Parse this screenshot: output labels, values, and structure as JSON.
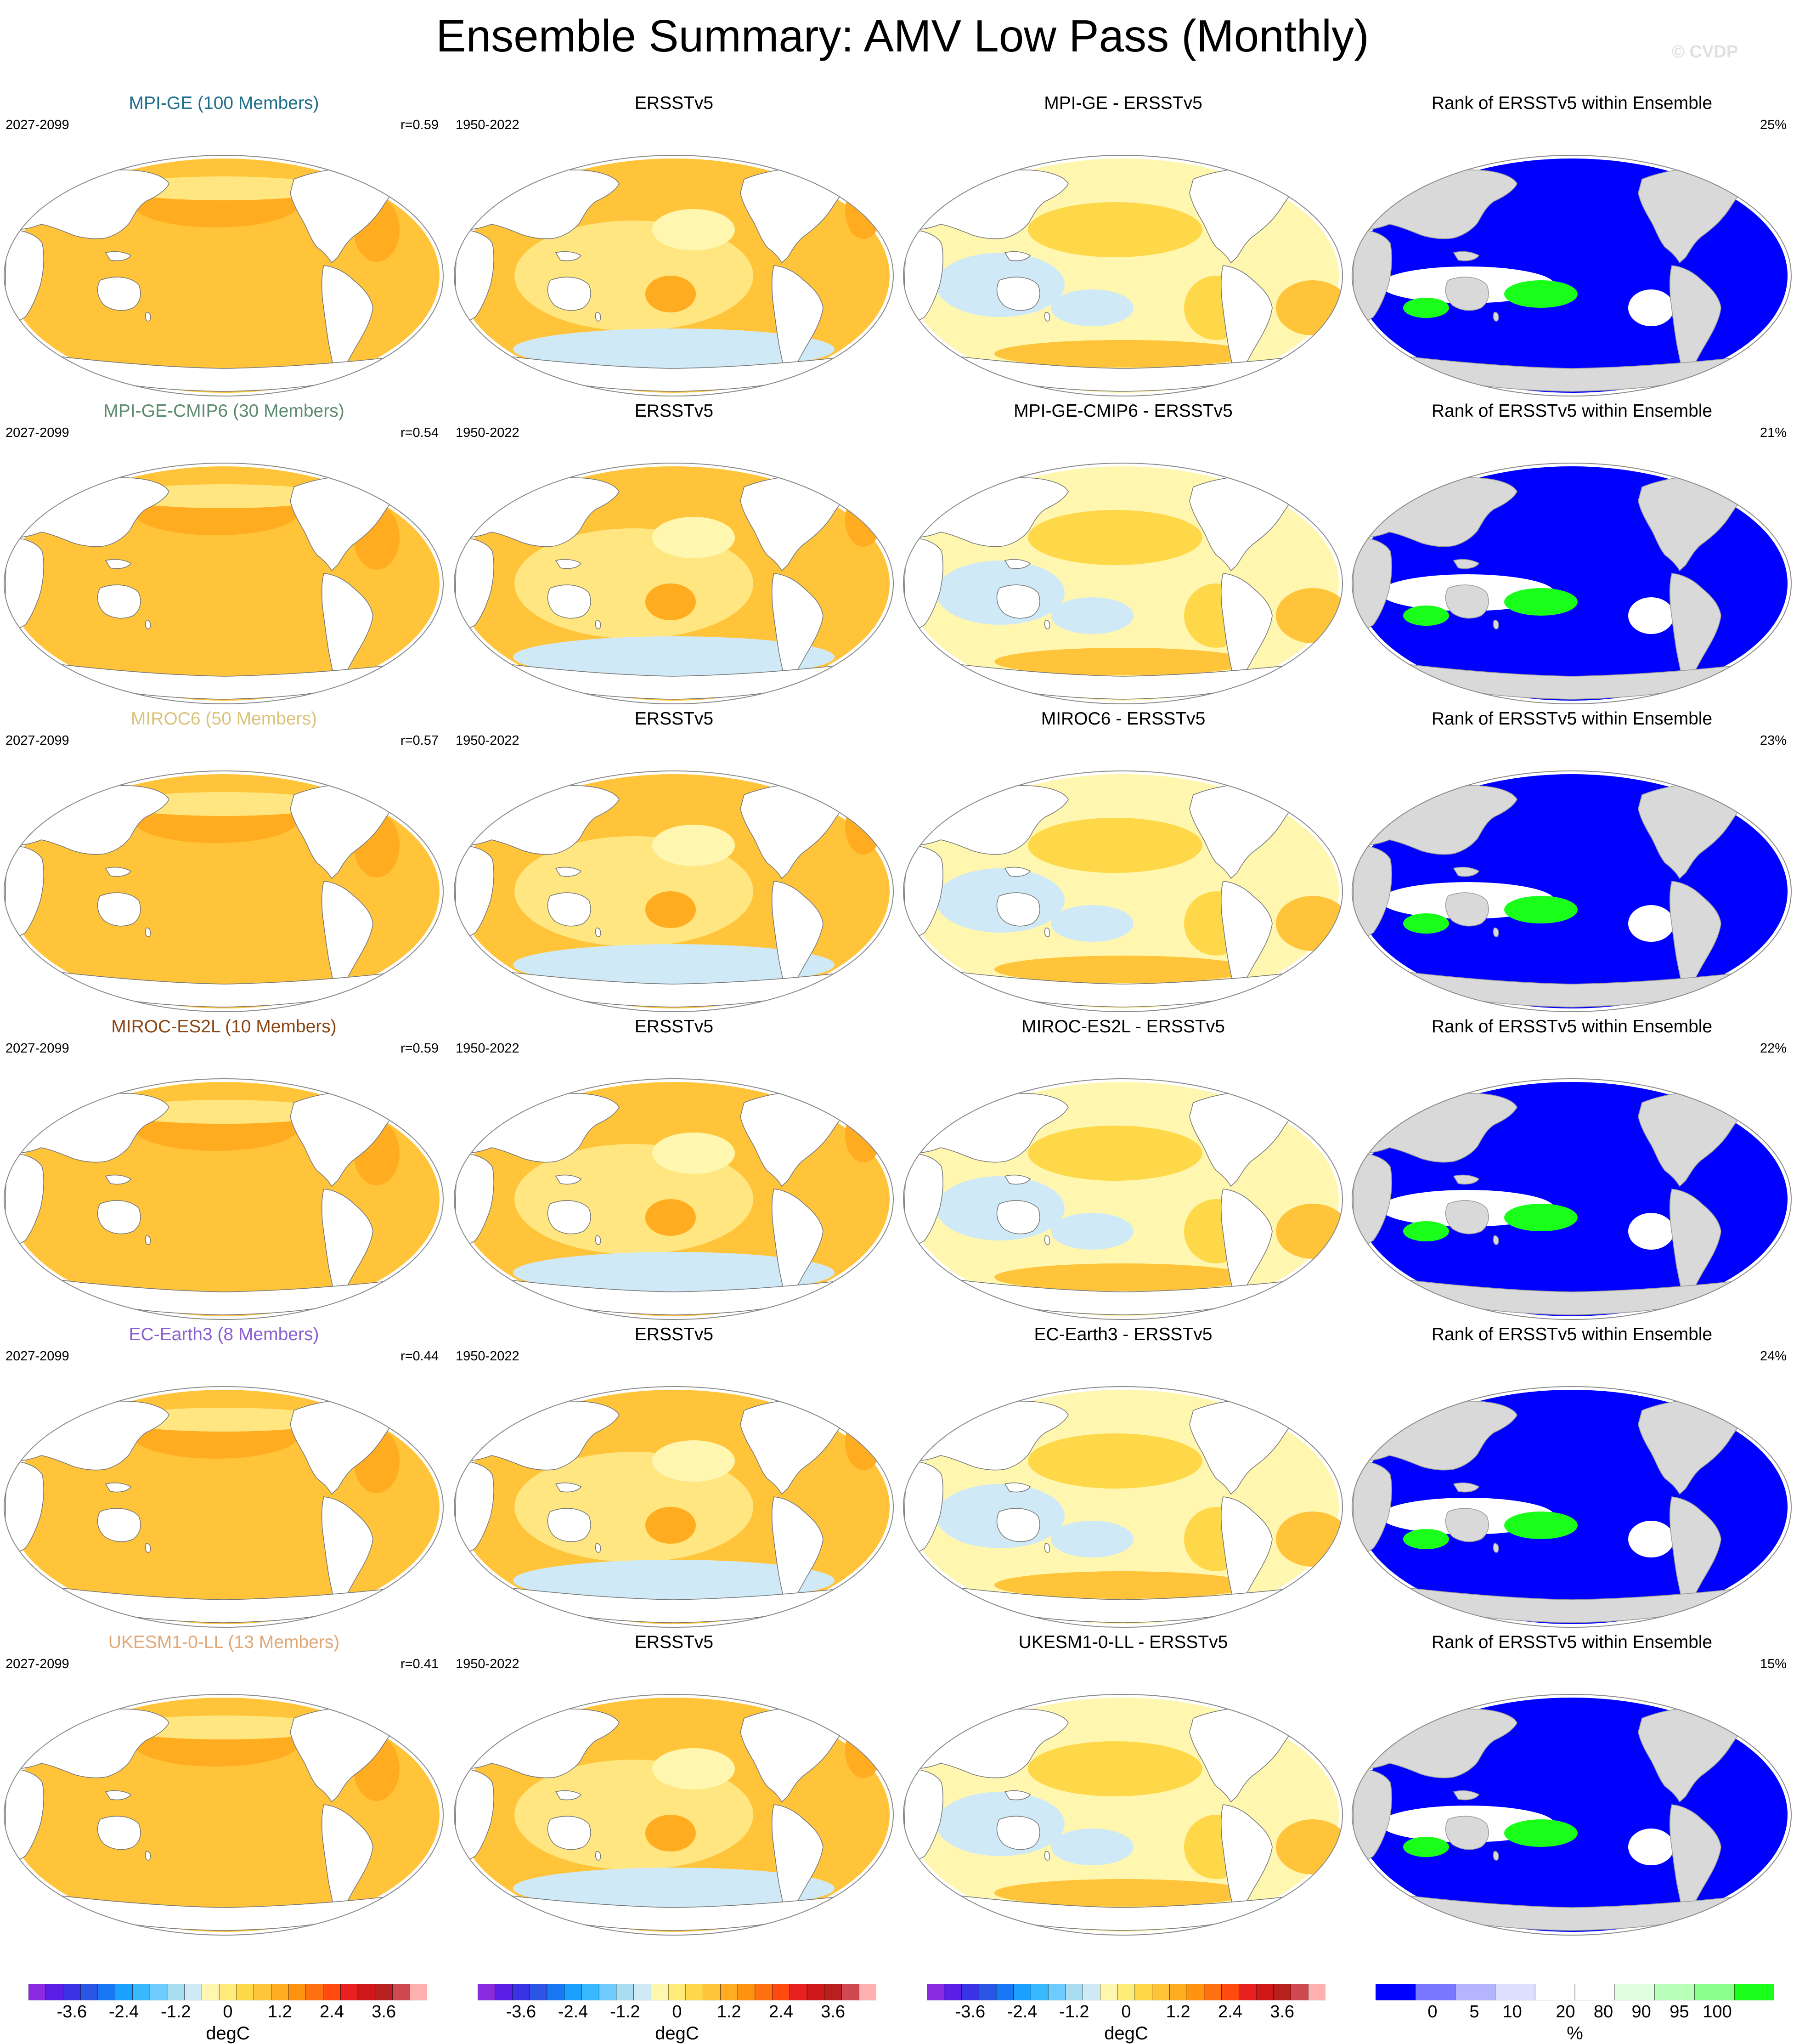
{
  "title": "Ensemble Summary: AMV Low Pass (Monthly)",
  "watermark": "© CVDP",
  "colors": {
    "land": "#ffffff",
    "land_rank": "#d9d9d9",
    "anom_scale": [
      "#8a2be2",
      "#5a1ee6",
      "#3a33e6",
      "#2a55e6",
      "#1877f2",
      "#1aa0ff",
      "#38b8ff",
      "#6ecbff",
      "#a9ddf2",
      "#cfe9f7",
      "#fff7b0",
      "#ffec78",
      "#ffd84a",
      "#ffc43a",
      "#ffac20",
      "#ff9210",
      "#ff7010",
      "#ff4a10",
      "#e82020",
      "#d01818",
      "#b82020",
      "#d04850",
      "#ffb0b0"
    ],
    "rank_scale": [
      "#0000ff",
      "#7777ff",
      "#b4b4ff",
      "#dedeff",
      "#ffffff",
      "#ffffff",
      "#dfffdf",
      "#b9ffb9",
      "#8aff8a",
      "#1aff1a"
    ]
  },
  "rows": [
    {
      "model": "MPI-GE (100 Members)",
      "model_color": "#1f6f8b",
      "model_period": "2027-2099",
      "r": "r=0.59",
      "obs_title": "ERSSTv5",
      "obs_period": "1950-2022",
      "diff_title": "MPI-GE - ERSSTv5",
      "rank_title": "Rank of ERSSTv5 within Ensemble",
      "rank_pct": "25%"
    },
    {
      "model": "MPI-GE-CMIP6 (30 Members)",
      "model_color": "#5c8a6e",
      "model_period": "2027-2099",
      "r": "r=0.54",
      "obs_title": "ERSSTv5",
      "obs_period": "1950-2022",
      "diff_title": "MPI-GE-CMIP6 - ERSSTv5",
      "rank_title": "Rank of ERSSTv5 within Ensemble",
      "rank_pct": "21%"
    },
    {
      "model": "MIROC6 (50 Members)",
      "model_color": "#d9c37a",
      "model_period": "2027-2099",
      "r": "r=0.57",
      "obs_title": "ERSSTv5",
      "obs_period": "1950-2022",
      "diff_title": "MIROC6 - ERSSTv5",
      "rank_title": "Rank of ERSSTv5 within Ensemble",
      "rank_pct": "23%"
    },
    {
      "model": "MIROC-ES2L (10 Members)",
      "model_color": "#8b4513",
      "model_period": "2027-2099",
      "r": "r=0.59",
      "obs_title": "ERSSTv5",
      "obs_period": "1950-2022",
      "diff_title": "MIROC-ES2L - ERSSTv5",
      "rank_title": "Rank of ERSSTv5 within Ensemble",
      "rank_pct": "22%"
    },
    {
      "model": "EC-Earth3 (8 Members)",
      "model_color": "#8a5fcf",
      "model_period": "2027-2099",
      "r": "r=0.44",
      "obs_title": "ERSSTv5",
      "obs_period": "1950-2022",
      "diff_title": "EC-Earth3 - ERSSTv5",
      "rank_title": "Rank of ERSSTv5 within Ensemble",
      "rank_pct": "24%"
    },
    {
      "model": "UKESM1-0-LL (13 Members)",
      "model_color": "#e0a878",
      "model_period": "2027-2099",
      "r": "r=0.41",
      "obs_title": "ERSSTv5",
      "obs_period": "1950-2022",
      "diff_title": "UKESM1-0-LL - ERSSTv5",
      "rank_title": "Rank of ERSSTv5 within Ensemble",
      "rank_pct": "15%"
    }
  ],
  "colorbars": [
    {
      "type": "anom",
      "units": "degC",
      "tick_labels": [
        "-3.6",
        "-2.4",
        "-1.2",
        "0",
        "1.2",
        "2.4",
        "3.6"
      ]
    },
    {
      "type": "anom",
      "units": "degC",
      "tick_labels": [
        "-3.6",
        "-2.4",
        "-1.2",
        "0",
        "1.2",
        "2.4",
        "3.6"
      ]
    },
    {
      "type": "anom",
      "units": "degC",
      "tick_labels": [
        "-3.6",
        "-2.4",
        "-1.2",
        "0",
        "1.2",
        "2.4",
        "3.6"
      ]
    },
    {
      "type": "rank",
      "units": "%",
      "tick_labels": [
        "0",
        "5",
        "10",
        "20",
        "80",
        "90",
        "95",
        "100"
      ]
    }
  ],
  "chart_data": {
    "type": "heatmap",
    "title": "Ensemble Summary: AMV Low Pass (Monthly)",
    "projection": "global map, Pacific-centred",
    "columns": [
      "model ensemble mean",
      "ERSSTv5",
      "model minus ERSSTv5",
      "rank of ERSSTv5 within ensemble"
    ],
    "anomaly_levels_degC": [
      -4.2,
      -3.9,
      -3.6,
      -3.3,
      -3.0,
      -2.7,
      -2.4,
      -2.1,
      -1.8,
      -1.5,
      -1.2,
      -0.9,
      -0.6,
      -0.3,
      0,
      0.3,
      0.6,
      0.9,
      1.2,
      1.5,
      1.8,
      2.1,
      2.4,
      2.7,
      3.0,
      3.3,
      3.6,
      3.9,
      4.2
    ],
    "rank_levels_pct": [
      0,
      5,
      10,
      20,
      80,
      90,
      95,
      100
    ],
    "pattern_correlation": [
      {
        "model": "MPI-GE",
        "r": 0.59,
        "rank_pct": 25
      },
      {
        "model": "MPI-GE-CMIP6",
        "r": 0.54,
        "rank_pct": 21
      },
      {
        "model": "MIROC6",
        "r": 0.57,
        "rank_pct": 23
      },
      {
        "model": "MIROC-ES2L",
        "r": 0.59,
        "rank_pct": 22
      },
      {
        "model": "EC-Earth3",
        "r": 0.44,
        "rank_pct": 24
      },
      {
        "model": "UKESM1-0-LL",
        "r": 0.41,
        "rank_pct": 15
      }
    ]
  }
}
